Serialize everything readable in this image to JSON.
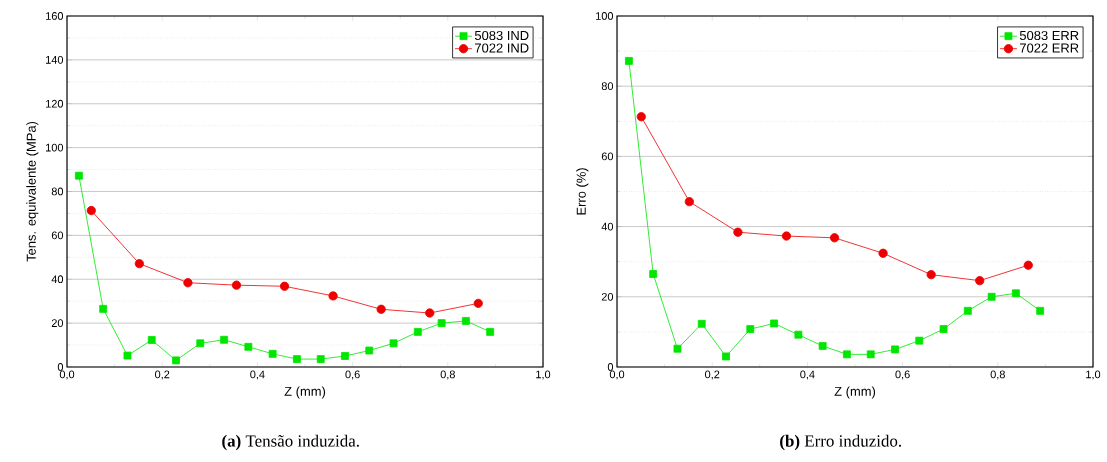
{
  "chart_data": [
    {
      "type": "line",
      "xlabel": "Z (mm)",
      "ylabel": "Tens. equivalente (MPa)",
      "annotations": [
        "**(a)** Tensão induzida."
      ],
      "xlim": [
        0,
        1
      ],
      "xticks": [
        {
          "value": 0,
          "label": "0,0"
        },
        {
          "value": 0.2,
          "label": "0,2"
        },
        {
          "value": 0.4,
          "label": "0,4"
        },
        {
          "value": 0.6,
          "label": "0,6"
        },
        {
          "value": 0.8,
          "label": "0,8"
        },
        {
          "value": 1,
          "label": "1,0"
        }
      ],
      "ylim": [
        0,
        160
      ],
      "yticks": [
        0,
        20,
        40,
        60,
        80,
        100,
        120,
        140,
        160
      ],
      "grid": "y",
      "legend": "top right",
      "series": [
        {
          "name": "5083 IND",
          "color": "#00e600",
          "marker": "square",
          "x": [
            0.025,
            0.076,
            0.127,
            0.178,
            0.229,
            0.28,
            0.33,
            0.381,
            0.432,
            0.483,
            0.533,
            0.584,
            0.635,
            0.686,
            0.737,
            0.787,
            0.838,
            0.889
          ],
          "values": [
            87.2,
            26.5,
            5.2,
            12.3,
            3,
            10.8,
            12.4,
            9.2,
            6,
            3.6,
            3.6,
            5,
            7.5,
            10.8,
            16,
            20,
            21,
            16
          ]
        },
        {
          "name": "7022 IND",
          "color": "#ee0000",
          "marker": "circle",
          "x": [
            0.051,
            0.152,
            0.254,
            0.356,
            0.457,
            0.559,
            0.66,
            0.762,
            0.864
          ],
          "values": [
            71.3,
            47.1,
            38.4,
            37.3,
            36.8,
            32.4,
            26.3,
            24.6,
            29
          ]
        }
      ]
    },
    {
      "type": "line",
      "xlabel": "Z (mm)",
      "ylabel": "Erro (%)",
      "annotations": [
        "**(b)** Erro induzido."
      ],
      "xlim": [
        0,
        1
      ],
      "xticks": [
        {
          "value": 0,
          "label": "0,0"
        },
        {
          "value": 0.2,
          "label": "0,2"
        },
        {
          "value": 0.4,
          "label": "0,4"
        },
        {
          "value": 0.6,
          "label": "0,6"
        },
        {
          "value": 0.8,
          "label": "0,8"
        },
        {
          "value": 1,
          "label": "1,0"
        }
      ],
      "ylim": [
        0,
        100
      ],
      "yticks": [
        0,
        20,
        40,
        60,
        80,
        100
      ],
      "grid": "y",
      "legend": "top right",
      "series": [
        {
          "name": "5083 ERR",
          "color": "#00e600",
          "marker": "square",
          "x": [
            0.025,
            0.076,
            0.127,
            0.178,
            0.229,
            0.28,
            0.33,
            0.381,
            0.432,
            0.483,
            0.533,
            0.584,
            0.635,
            0.686,
            0.737,
            0.787,
            0.838,
            0.889
          ],
          "values": [
            87.2,
            26.5,
            5.2,
            12.3,
            3,
            10.8,
            12.4,
            9.2,
            6,
            3.6,
            3.6,
            5,
            7.5,
            10.8,
            16,
            20,
            21,
            16
          ]
        },
        {
          "name": "7022 ERR",
          "color": "#ee0000",
          "marker": "circle",
          "x": [
            0.051,
            0.152,
            0.254,
            0.356,
            0.457,
            0.559,
            0.66,
            0.762,
            0.864
          ],
          "values": [
            71.3,
            47.1,
            38.4,
            37.3,
            36.8,
            32.4,
            26.3,
            24.6,
            29
          ]
        }
      ]
    }
  ]
}
